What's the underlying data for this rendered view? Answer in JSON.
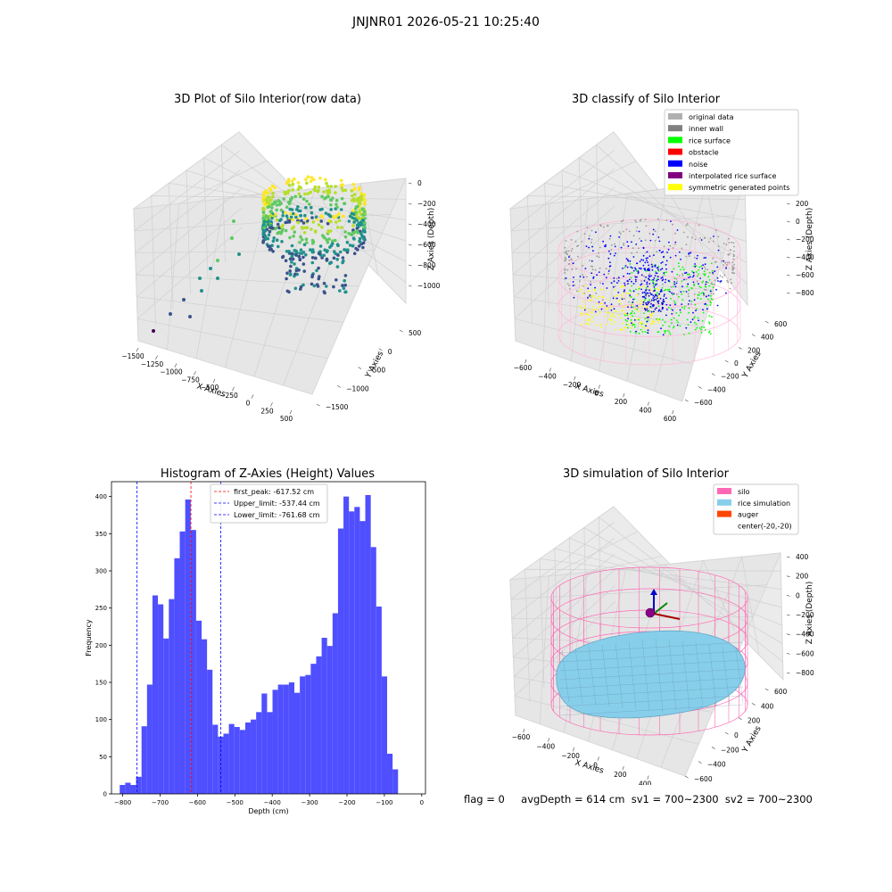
{
  "figure": {
    "suptitle": "JNJNR01 2026-05-21 10:25:40",
    "footer": {
      "flag": "flag = 0",
      "stats": "avgDepth = 614 cm  sv1 = 700~2300  sv2 = 700~2300"
    }
  },
  "chart_data": [
    {
      "type": "scatter",
      "title": "3D Plot of Silo Interior(row data)",
      "xlabel": "X Axies",
      "ylabel": "Y Axies",
      "zlabel": "Z Axies (Depth)",
      "xticks": [
        "−1500",
        "−1250",
        "−1000",
        "−750",
        "−500",
        "−250",
        "0",
        "250",
        "500"
      ],
      "yticks": [
        "−1500",
        "−1000",
        "−500",
        "0",
        "500"
      ],
      "zticks": [
        "0",
        "−200",
        "−400",
        "−600",
        "−800",
        "−1000"
      ],
      "colormap": "viridis",
      "xlim": [
        -1500,
        600
      ],
      "ylim": [
        -1500,
        600
      ],
      "zlim": [
        -1100,
        0
      ]
    },
    {
      "type": "scatter",
      "title": "3D classify of Silo Interior",
      "xlabel": "X Axies",
      "ylabel": "Y Axies",
      "zlabel": "Z Axies (Depth)",
      "xticks": [
        "−600",
        "−400",
        "−200",
        "0",
        "200",
        "400",
        "600"
      ],
      "yticks": [
        "−600",
        "−400",
        "−200",
        "0",
        "200",
        "400",
        "600"
      ],
      "zticks": [
        "200",
        "0",
        "−200",
        "−400",
        "−600",
        "−800"
      ],
      "legend": {
        "location": "upper right",
        "entries": [
          {
            "label": "original data",
            "color": "#b0b0b0"
          },
          {
            "label": "inner wall",
            "color": "#808080"
          },
          {
            "label": "rice surface",
            "color": "#00ff00"
          },
          {
            "label": "obstacle",
            "color": "#ff0000"
          },
          {
            "label": "noise",
            "color": "#0000ff"
          },
          {
            "label": "interpolated rice surface",
            "color": "#800080"
          },
          {
            "label": "symmetric generated points",
            "color": "#ffff00"
          }
        ]
      }
    },
    {
      "type": "bar",
      "title": "Histogram of Z-Axies (Height) Values",
      "xlabel": "Depth (cm)",
      "ylabel": "Frequency",
      "xlim": [
        -830,
        10
      ],
      "ylim": [
        0,
        420
      ],
      "xticks": [
        -800,
        -700,
        -600,
        -500,
        -400,
        -300,
        -200,
        -100,
        0
      ],
      "yticks": [
        0,
        50,
        100,
        150,
        200,
        250,
        300,
        350,
        400
      ],
      "bar_color": "#4f4fff",
      "bin_start": -808,
      "bin_width": 14.6,
      "values": [
        12,
        15,
        12,
        23,
        91,
        147,
        267,
        255,
        209,
        262,
        317,
        353,
        396,
        355,
        233,
        208,
        167,
        93,
        77,
        81,
        94,
        90,
        86,
        96,
        100,
        110,
        135,
        110,
        140,
        147,
        147,
        150,
        136,
        158,
        160,
        175,
        185,
        210,
        199,
        243,
        357,
        400,
        380,
        386,
        367,
        402,
        332,
        252,
        158,
        54,
        33
      ],
      "vlines": [
        {
          "label": "first_peak: -617.52 cm",
          "x": -617.52,
          "color": "#ff0000"
        },
        {
          "label": "Upper_limit: -537.44 cm",
          "x": -537.44,
          "color": "#0000ff"
        },
        {
          "label": "Lower_limit: -761.68 cm",
          "x": -761.68,
          "color": "#0000ff"
        }
      ],
      "legend": {
        "location": "upper center"
      }
    },
    {
      "type": "surface",
      "title": "3D simulation of Silo Interior",
      "xlabel": "X Axies",
      "ylabel": "Y Axies",
      "zlabel": "Z Axies (Depth)",
      "xticks": [
        "−600",
        "−400",
        "−200",
        "0",
        "200",
        "400",
        "600"
      ],
      "yticks": [
        "−600",
        "−400",
        "−200",
        "0",
        "200",
        "400",
        "600"
      ],
      "zticks": [
        "400",
        "200",
        "0",
        "−200",
        "−400",
        "−600",
        "−800"
      ],
      "legend": {
        "location": "upper right",
        "entries": [
          {
            "label": "silo",
            "color": "#ff69b4"
          },
          {
            "label": "rice simulation",
            "color": "#87ceeb"
          },
          {
            "label": "auger",
            "color": "#ff4500"
          },
          {
            "label": "center(-20,-20)",
            "color": ""
          }
        ]
      }
    }
  ]
}
